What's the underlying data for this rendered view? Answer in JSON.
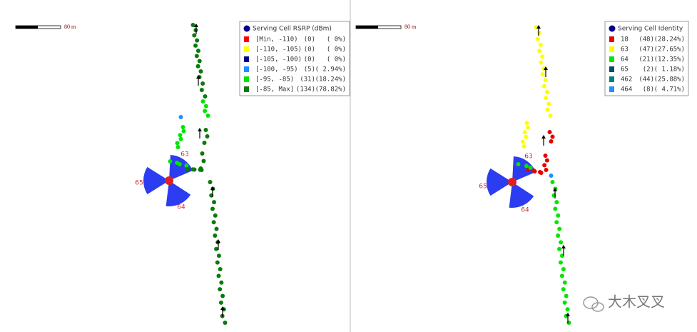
{
  "panels": [
    {
      "scale_label": "80 m",
      "legend": {
        "title": "Serving Cell RSRP (dBm)",
        "items": [
          {
            "label": "[Min, -110)",
            "count": "(0)",
            "percent": "(   0%)",
            "color": "#ff0000"
          },
          {
            "label": "[-110, -105)",
            "count": "(0)",
            "percent": "(   0%)",
            "color": "#ffff00"
          },
          {
            "label": "[-105, -100)",
            "count": "(0)",
            "percent": "(   0%)",
            "color": "#00008b"
          },
          {
            "label": "[-100, -95)",
            "count": "(5)",
            "percent": "( 2.94%)",
            "color": "#1e90ff"
          },
          {
            "label": "[-95, -85)",
            "count": "(31)",
            "percent": "(18.24%)",
            "color": "#00e600"
          },
          {
            "label": "[-85, Max]",
            "count": "(134)",
            "percent": "(78.82%)",
            "color": "#0a7a0a"
          }
        ]
      },
      "site_labels": [
        "63",
        "65",
        "64"
      ]
    },
    {
      "scale_label": "80 m",
      "legend": {
        "title": "Serving Cell Identity",
        "items": [
          {
            "label": "18",
            "count": "(48)",
            "percent": "(28.24%)",
            "color": "#e60000"
          },
          {
            "label": "63",
            "count": "(47)",
            "percent": "(27.65%)",
            "color": "#ffff00"
          },
          {
            "label": "64",
            "count": "(21)",
            "percent": "(12.35%)",
            "color": "#00e600"
          },
          {
            "label": "65",
            "count": "(2)",
            "percent": "( 1.18%)",
            "color": "#0a4a6a"
          },
          {
            "label": "462",
            "count": "(44)",
            "percent": "(25.88%)",
            "color": "#008080"
          },
          {
            "label": "464",
            "count": "(8)",
            "percent": "( 4.71%)",
            "color": "#1e90ff"
          }
        ]
      },
      "site_labels": [
        "63",
        "65",
        "64"
      ]
    }
  ],
  "watermark": "大木叉叉"
}
